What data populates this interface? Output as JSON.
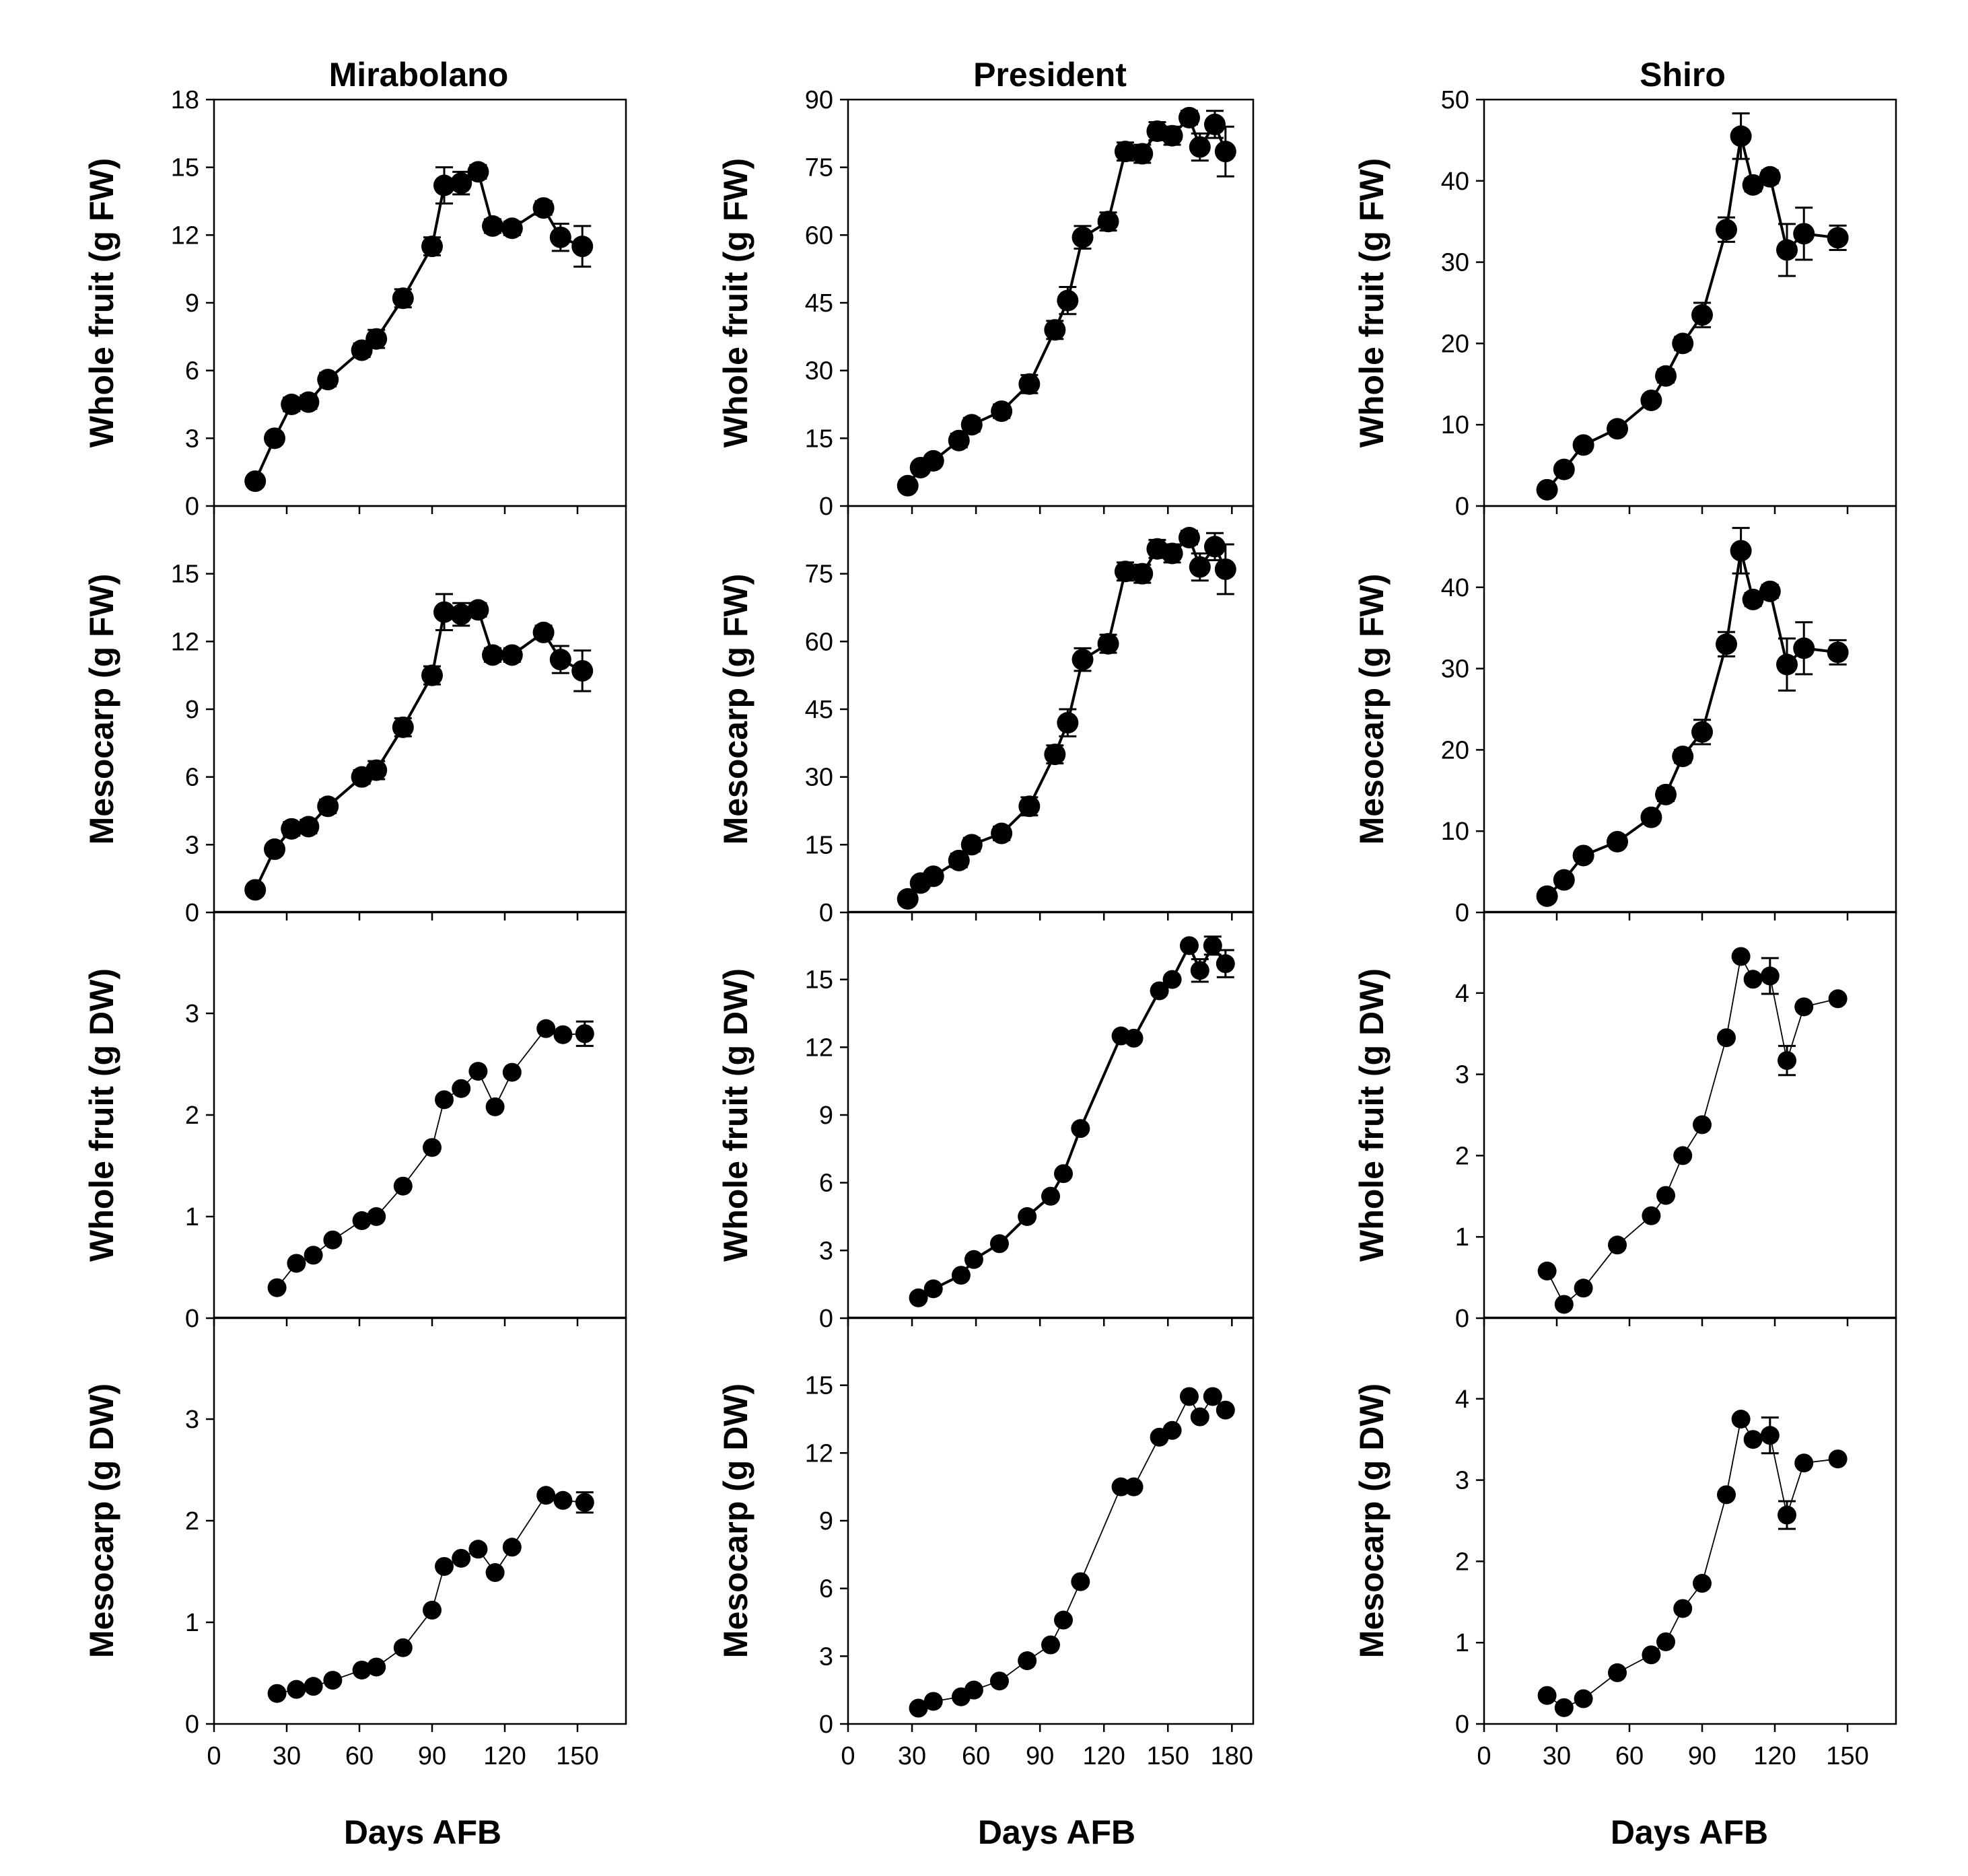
{
  "figure": {
    "column_titles": [
      "Mirabolano",
      "President",
      "Shiro"
    ],
    "x_axis_label": "Days AFB",
    "row_y_labels": [
      "Whole fruit (g FW)",
      "Mesocarp (g FW)",
      "Whole fruit (g DW)",
      "Mesocarp (g DW)"
    ]
  },
  "chart_data": [
    {
      "type": "line",
      "title": "Mirabolano",
      "ylabel": "Whole fruit (g FW)",
      "xlabel": "Days AFB",
      "xlim": [
        0,
        170
      ],
      "xticks": [
        0,
        30,
        60,
        90,
        120,
        150
      ],
      "ylim": [
        0,
        18
      ],
      "yticks": [
        0,
        3,
        6,
        9,
        12,
        15,
        18
      ],
      "show_x_ticklabels": false,
      "marker": "circle",
      "marker_size": "large",
      "line": "thick",
      "x": [
        17,
        25,
        32,
        39,
        47,
        61,
        67,
        78,
        90,
        95,
        102,
        109,
        115,
        123,
        136,
        143,
        152
      ],
      "y": [
        1.1,
        3.0,
        4.5,
        4.6,
        5.6,
        6.9,
        7.4,
        9.2,
        11.5,
        14.2,
        14.3,
        14.8,
        12.4,
        12.3,
        13.2,
        11.9,
        11.5
      ],
      "err": [
        0.2,
        0.2,
        0.3,
        0.3,
        0.3,
        0.3,
        0.4,
        0.4,
        0.4,
        0.8,
        0.5,
        0.3,
        0.3,
        0.3,
        0.3,
        0.6,
        0.9
      ]
    },
    {
      "type": "line",
      "title": "President",
      "ylabel": "Whole fruit (g FW)",
      "xlabel": "Days AFB",
      "xlim": [
        0,
        190
      ],
      "xticks": [
        0,
        30,
        60,
        90,
        120,
        150,
        180
      ],
      "ylim": [
        0,
        90
      ],
      "yticks": [
        0,
        15,
        30,
        45,
        60,
        75,
        90
      ],
      "show_x_ticklabels": false,
      "marker": "circle",
      "marker_size": "large",
      "line": "thick",
      "x": [
        28,
        34,
        40,
        52,
        58,
        72,
        85,
        97,
        103,
        110,
        122,
        130,
        138,
        145,
        152,
        160,
        165,
        172,
        177
      ],
      "y": [
        4.5,
        8.5,
        10.0,
        14.5,
        18.0,
        21.0,
        27.0,
        39.0,
        45.5,
        59.5,
        63.0,
        78.5,
        78.0,
        83.0,
        82.0,
        86.0,
        79.5,
        84.5,
        78.5
      ],
      "err": [
        0.8,
        1.0,
        1.2,
        1.5,
        1.5,
        1.5,
        2.0,
        2.0,
        3.0,
        2.5,
        2.0,
        2.0,
        2.0,
        2.0,
        2.0,
        1.5,
        3.0,
        3.0,
        5.5
      ]
    },
    {
      "type": "line",
      "title": "Shiro",
      "ylabel": "Whole fruit (g FW)",
      "xlabel": "Days AFB",
      "xlim": [
        0,
        170
      ],
      "xticks": [
        0,
        30,
        60,
        90,
        120,
        150
      ],
      "ylim": [
        0,
        50
      ],
      "yticks": [
        0,
        10,
        20,
        30,
        40,
        50
      ],
      "show_x_ticklabels": false,
      "marker": "circle",
      "marker_size": "large",
      "line": "thick",
      "x": [
        26,
        33,
        41,
        55,
        69,
        75,
        82,
        90,
        100,
        106,
        111,
        118,
        125,
        132,
        146
      ],
      "y": [
        2.0,
        4.5,
        7.5,
        9.5,
        13.0,
        16.0,
        20.0,
        23.5,
        34.0,
        45.5,
        39.5,
        40.5,
        31.5,
        33.5,
        33.0
      ],
      "err": [
        0.3,
        0.5,
        0.5,
        0.5,
        0.7,
        0.8,
        0.8,
        1.5,
        1.5,
        2.8,
        0.8,
        0.8,
        3.2,
        3.2,
        1.5
      ]
    },
    {
      "type": "line",
      "title": "Mirabolano",
      "ylabel": "Mesocarp (g FW)",
      "xlabel": "Days AFB",
      "xlim": [
        0,
        170
      ],
      "xticks": [
        0,
        30,
        60,
        90,
        120,
        150
      ],
      "ylim": [
        0,
        18
      ],
      "yticks": [
        0,
        3,
        6,
        9,
        12,
        15
      ],
      "show_x_ticklabels": false,
      "marker": "circle",
      "marker_size": "large",
      "line": "thick",
      "x": [
        17,
        25,
        32,
        39,
        47,
        61,
        67,
        78,
        90,
        95,
        102,
        109,
        115,
        123,
        136,
        143,
        152
      ],
      "y": [
        1.0,
        2.8,
        3.7,
        3.8,
        4.7,
        6.0,
        6.3,
        8.2,
        10.5,
        13.3,
        13.2,
        13.4,
        11.4,
        11.4,
        12.4,
        11.2,
        10.7
      ],
      "err": [
        0.2,
        0.2,
        0.3,
        0.3,
        0.3,
        0.3,
        0.4,
        0.4,
        0.4,
        0.8,
        0.5,
        0.3,
        0.3,
        0.3,
        0.3,
        0.6,
        0.9
      ]
    },
    {
      "type": "line",
      "title": "President",
      "ylabel": "Mesocarp (g FW)",
      "xlabel": "Days AFB",
      "xlim": [
        0,
        190
      ],
      "xticks": [
        0,
        30,
        60,
        90,
        120,
        150,
        180
      ],
      "ylim": [
        0,
        90
      ],
      "yticks": [
        0,
        15,
        30,
        45,
        60,
        75
      ],
      "show_x_ticklabels": false,
      "marker": "circle",
      "marker_size": "large",
      "line": "thick",
      "x": [
        28,
        34,
        40,
        52,
        58,
        72,
        85,
        97,
        103,
        110,
        122,
        130,
        138,
        145,
        152,
        160,
        165,
        172,
        177
      ],
      "y": [
        3.0,
        6.5,
        8.0,
        11.5,
        15.0,
        17.5,
        23.5,
        35.0,
        42.0,
        56.0,
        59.5,
        75.5,
        75.0,
        80.5,
        79.5,
        83.0,
        76.5,
        81.0,
        76.0
      ],
      "err": [
        0.8,
        1.0,
        1.2,
        1.5,
        1.5,
        1.5,
        2.0,
        2.0,
        3.0,
        2.5,
        2.0,
        2.0,
        2.0,
        2.0,
        2.0,
        1.5,
        3.0,
        3.0,
        5.5
      ]
    },
    {
      "type": "line",
      "title": "Shiro",
      "ylabel": "Mesocarp (g FW)",
      "xlabel": "Days AFB",
      "xlim": [
        0,
        170
      ],
      "xticks": [
        0,
        30,
        60,
        90,
        120,
        150
      ],
      "ylim": [
        0,
        50
      ],
      "yticks": [
        0,
        10,
        20,
        30,
        40
      ],
      "show_x_ticklabels": false,
      "marker": "circle",
      "marker_size": "large",
      "line": "thick",
      "x": [
        26,
        33,
        41,
        55,
        69,
        75,
        82,
        90,
        100,
        106,
        111,
        118,
        125,
        132,
        146
      ],
      "y": [
        2.0,
        4.0,
        7.0,
        8.7,
        11.7,
        14.5,
        19.2,
        22.2,
        33.0,
        44.5,
        38.5,
        39.5,
        30.5,
        32.5,
        32.0
      ],
      "err": [
        0.3,
        0.5,
        0.5,
        0.5,
        0.7,
        0.8,
        0.8,
        1.5,
        1.5,
        2.8,
        0.8,
        0.8,
        3.2,
        3.2,
        1.5
      ]
    },
    {
      "type": "line",
      "title": "Mirabolano",
      "ylabel": "Whole fruit (g DW)",
      "xlabel": "Days AFB",
      "xlim": [
        0,
        170
      ],
      "xticks": [
        0,
        30,
        60,
        90,
        120,
        150
      ],
      "ylim": [
        0,
        4
      ],
      "yticks": [
        0,
        1,
        2,
        3
      ],
      "show_x_ticklabels": false,
      "marker": "circle",
      "marker_size": "small",
      "line": "thin",
      "x": [
        26,
        34,
        41,
        49,
        61,
        67,
        78,
        90,
        95,
        102,
        109,
        116,
        123,
        137,
        144,
        153
      ],
      "y": [
        0.3,
        0.54,
        0.62,
        0.77,
        0.96,
        1.0,
        1.3,
        1.68,
        2.15,
        2.26,
        2.43,
        2.08,
        2.42,
        2.85,
        2.79,
        2.8
      ],
      "err": [
        0,
        0,
        0,
        0,
        0,
        0,
        0,
        0,
        0,
        0,
        0,
        0,
        0,
        0,
        0,
        0.12
      ]
    },
    {
      "type": "line",
      "title": "President",
      "ylabel": "Whole fruit (g DW)",
      "xlabel": "Days AFB",
      "xlim": [
        0,
        190
      ],
      "xticks": [
        0,
        30,
        60,
        90,
        120,
        150,
        180
      ],
      "ylim": [
        0,
        18
      ],
      "yticks": [
        0,
        3,
        6,
        9,
        12,
        15
      ],
      "show_x_ticklabels": false,
      "marker": "circle",
      "marker_size": "small",
      "line": "thick",
      "x": [
        33,
        40,
        53,
        59,
        71,
        84,
        95,
        101,
        109,
        128,
        134,
        146,
        152,
        160,
        165,
        171,
        177
      ],
      "y": [
        0.9,
        1.3,
        1.9,
        2.6,
        3.3,
        4.5,
        5.4,
        6.4,
        8.4,
        12.5,
        12.4,
        14.5,
        15.0,
        16.5,
        15.4,
        16.5,
        15.7
      ],
      "err": [
        0,
        0,
        0,
        0,
        0,
        0,
        0,
        0,
        0,
        0,
        0,
        0,
        0,
        0,
        0.5,
        0.4,
        0.6
      ]
    },
    {
      "type": "line",
      "title": "Shiro",
      "ylabel": "Whole fruit (g DW)",
      "xlabel": "Days AFB",
      "xlim": [
        0,
        170
      ],
      "xticks": [
        0,
        30,
        60,
        90,
        120,
        150
      ],
      "ylim": [
        0,
        5
      ],
      "yticks": [
        0,
        1,
        2,
        3,
        4
      ],
      "show_x_ticklabels": false,
      "marker": "circle",
      "marker_size": "small",
      "line": "thin",
      "x": [
        26,
        33,
        41,
        55,
        69,
        75,
        82,
        90,
        100,
        106,
        111,
        118,
        125,
        132,
        146
      ],
      "y": [
        0.58,
        0.17,
        0.37,
        0.9,
        1.26,
        1.51,
        2.0,
        2.38,
        3.45,
        4.45,
        4.17,
        4.21,
        3.17,
        3.83,
        3.93
      ],
      "err": [
        0,
        0,
        0,
        0,
        0,
        0,
        0,
        0,
        0,
        0,
        0,
        0.22,
        0.18,
        0,
        0
      ]
    },
    {
      "type": "line",
      "title": "Mirabolano",
      "ylabel": "Mesocarp (g DW)",
      "xlabel": "Days AFB",
      "xlim": [
        0,
        170
      ],
      "xticks": [
        0,
        30,
        60,
        90,
        120,
        150
      ],
      "ylim": [
        0,
        4
      ],
      "yticks": [
        0,
        1,
        2,
        3
      ],
      "show_x_ticklabels": true,
      "marker": "circle",
      "marker_size": "small",
      "line": "thin",
      "x": [
        26,
        34,
        41,
        49,
        61,
        67,
        78,
        90,
        95,
        102,
        109,
        116,
        123,
        137,
        144,
        153
      ],
      "y": [
        0.3,
        0.34,
        0.37,
        0.43,
        0.53,
        0.56,
        0.75,
        1.12,
        1.55,
        1.63,
        1.72,
        1.49,
        1.74,
        2.25,
        2.2,
        2.18
      ],
      "err": [
        0,
        0,
        0,
        0,
        0,
        0,
        0,
        0,
        0,
        0,
        0,
        0,
        0,
        0,
        0,
        0.1
      ]
    },
    {
      "type": "line",
      "title": "President",
      "ylabel": "Mesocarp (g DW)",
      "xlabel": "Days AFB",
      "xlim": [
        0,
        190
      ],
      "xticks": [
        0,
        30,
        60,
        90,
        120,
        150,
        180
      ],
      "ylim": [
        0,
        18
      ],
      "yticks": [
        0,
        3,
        6,
        9,
        12,
        15
      ],
      "show_x_ticklabels": true,
      "marker": "circle",
      "marker_size": "small",
      "line": "thin",
      "x": [
        33,
        40,
        53,
        59,
        71,
        84,
        95,
        101,
        109,
        128,
        134,
        146,
        152,
        160,
        165,
        171,
        177
      ],
      "y": [
        0.7,
        1.0,
        1.2,
        1.5,
        1.9,
        2.8,
        3.5,
        4.6,
        6.3,
        10.5,
        10.5,
        12.7,
        13.0,
        14.5,
        13.6,
        14.5,
        13.9
      ],
      "err": [
        0,
        0,
        0,
        0,
        0,
        0,
        0,
        0,
        0,
        0,
        0,
        0,
        0,
        0,
        0,
        0,
        0
      ]
    },
    {
      "type": "line",
      "title": "Shiro",
      "ylabel": "Mesocarp (g DW)",
      "xlabel": "Days AFB",
      "xlim": [
        0,
        170
      ],
      "xticks": [
        0,
        30,
        60,
        90,
        120,
        150
      ],
      "ylim": [
        0,
        5
      ],
      "yticks": [
        0,
        1,
        2,
        3,
        4
      ],
      "show_x_ticklabels": true,
      "marker": "circle",
      "marker_size": "small",
      "line": "thin",
      "x": [
        26,
        33,
        41,
        55,
        69,
        75,
        82,
        90,
        100,
        106,
        111,
        118,
        125,
        132,
        146
      ],
      "y": [
        0.35,
        0.2,
        0.31,
        0.63,
        0.85,
        1.01,
        1.42,
        1.73,
        2.82,
        3.75,
        3.5,
        3.55,
        2.57,
        3.21,
        3.26
      ],
      "err": [
        0,
        0,
        0,
        0,
        0,
        0,
        0,
        0,
        0,
        0,
        0,
        0.22,
        0.17,
        0,
        0
      ]
    }
  ]
}
